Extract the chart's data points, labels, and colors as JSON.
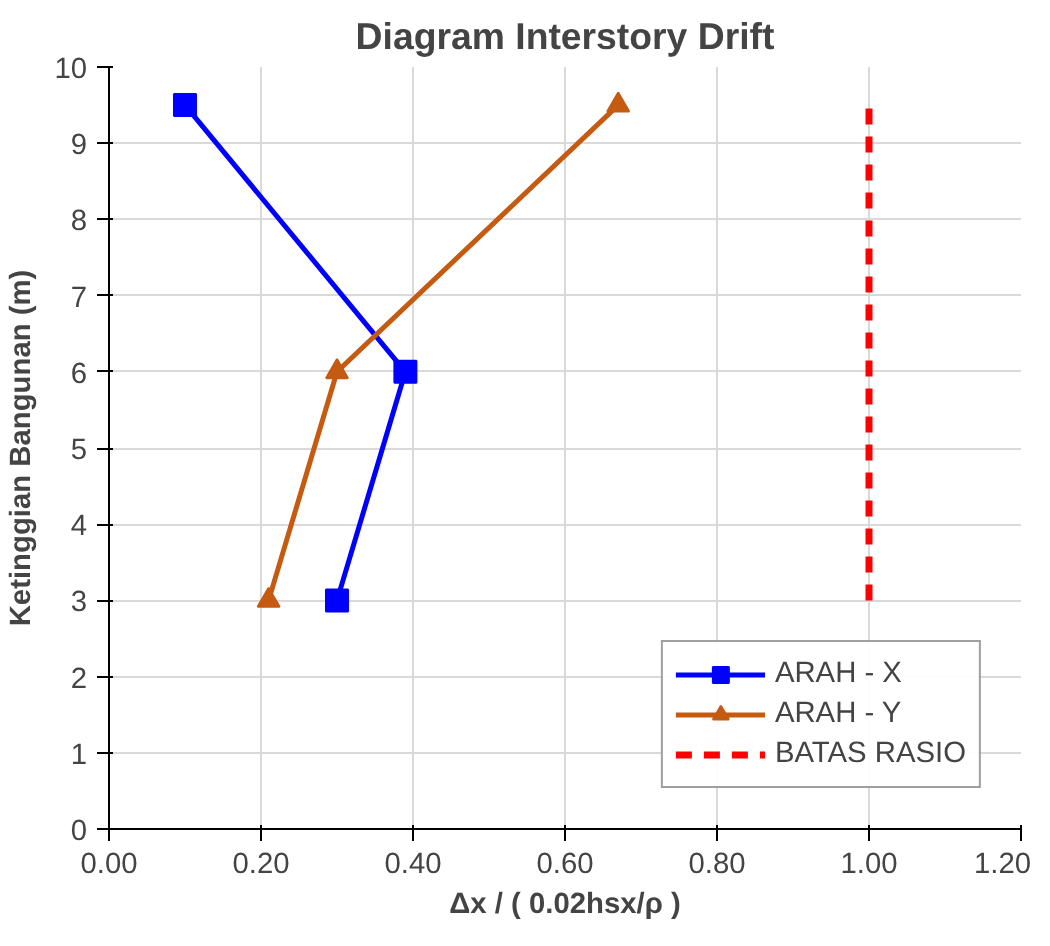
{
  "chart_data": {
    "type": "line",
    "title": "Diagram Interstory Drift",
    "xlabel": "Δx / ( 0.02hsx/ρ )",
    "ylabel": "Ketinggian Bangunan (m)",
    "xlim": [
      0,
      1.2
    ],
    "xticks": [
      {
        "value": 0,
        "label": "0.00"
      },
      {
        "value": 0.2,
        "label": "0.20"
      },
      {
        "value": 0.4,
        "label": "0.40"
      },
      {
        "value": 0.6,
        "label": "0.60"
      },
      {
        "value": 0.8,
        "label": "0.80"
      },
      {
        "value": 1,
        "label": "1.00"
      },
      {
        "value": 1.2,
        "label": "1.20"
      }
    ],
    "ylim": [
      0,
      10
    ],
    "yticks": [
      0,
      1,
      2,
      3,
      4,
      5,
      6,
      7,
      8,
      9,
      10
    ],
    "grid": true,
    "legend": "bottom right",
    "series": [
      {
        "name": "ARAH - X",
        "color": "#0000ff",
        "marker": "square",
        "line_style": "solid",
        "x": [
          0.1,
          0.39,
          0.3
        ],
        "values": [
          9.5,
          6,
          3
        ]
      },
      {
        "name": "ARAH - Y",
        "color": "#c55a11",
        "marker": "triangle",
        "line_style": "solid",
        "x": [
          0.67,
          0.3,
          0.21
        ],
        "values": [
          9.5,
          6,
          3
        ]
      },
      {
        "name": "BATAS RASIO",
        "color": "#ff0000",
        "marker": "none",
        "line_style": "dashed",
        "x": [
          1,
          1
        ],
        "values": [
          3,
          9.5
        ]
      }
    ]
  }
}
